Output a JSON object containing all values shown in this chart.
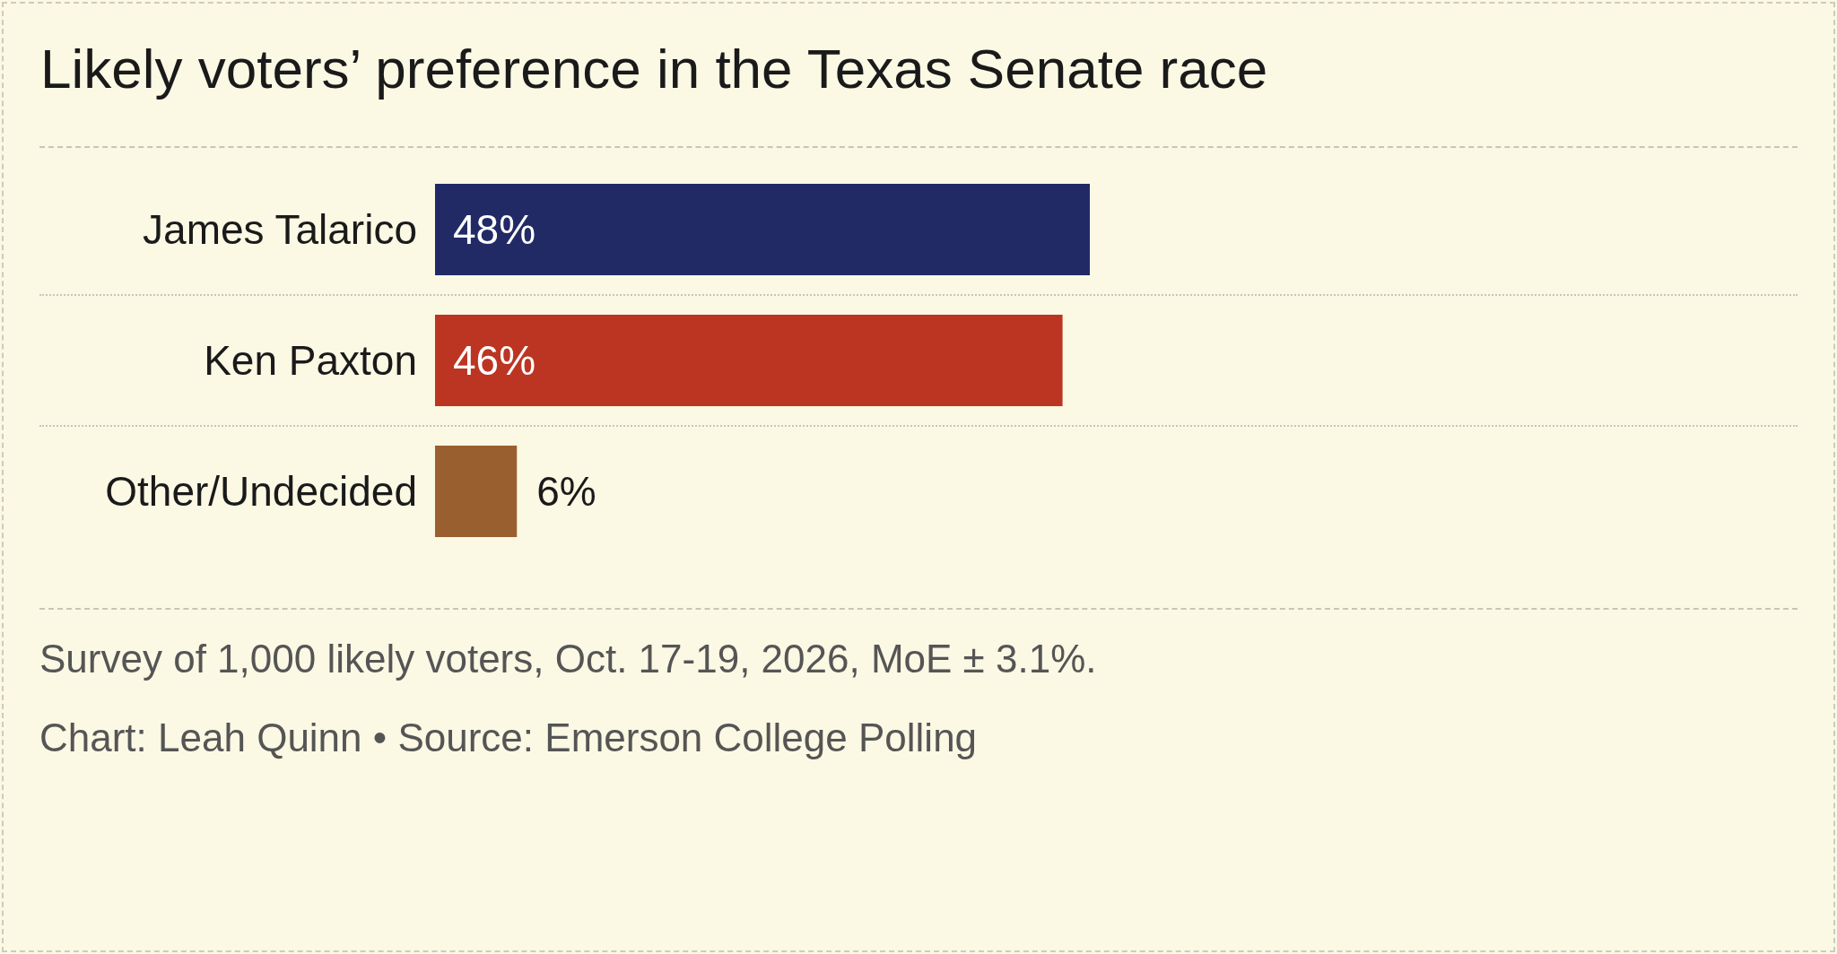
{
  "chart_data": {
    "type": "bar",
    "orientation": "horizontal",
    "title": "Likely voters’ preference in the Texas Senate race",
    "categories": [
      "James Talarico",
      "Ken Paxton",
      "Other/Undecided"
    ],
    "values": [
      48,
      46,
      6
    ],
    "colors": [
      "#222a66",
      "#bc3522",
      "#9a5f2e"
    ],
    "value_labels": [
      "48%",
      "46%",
      "6%"
    ],
    "annotations": [
      "Survey of 1,000 likely voters, Oct. 17-19, 2026, MoE ± 3.1%.",
      "Chart: Leah Quinn • Source: Emerson College Polling"
    ]
  }
}
